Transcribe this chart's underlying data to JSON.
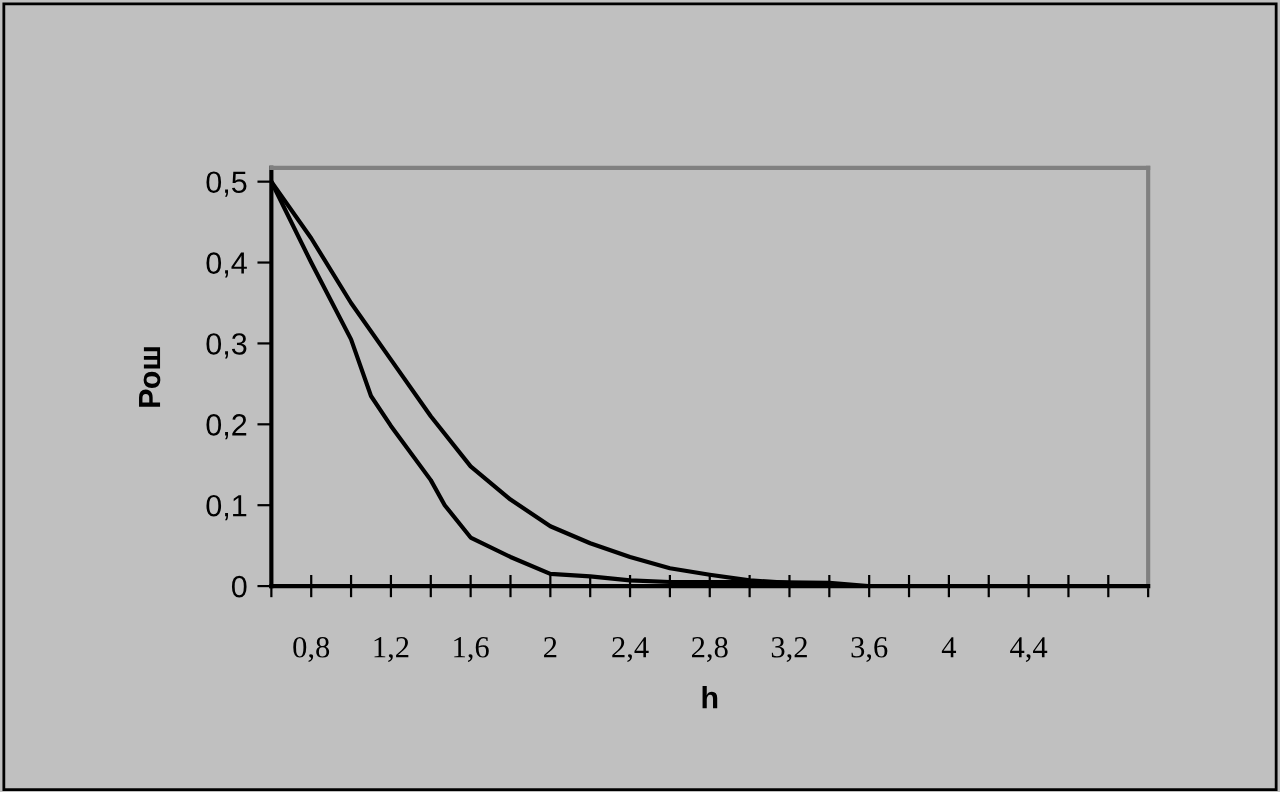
{
  "chart_data": {
    "type": "line",
    "xlabel": "h",
    "ylabel": "Рош",
    "series": [
      {
        "color": "#000000",
        "x": [
          0.6,
          0.8,
          1.0,
          1.2,
          1.4,
          1.6,
          1.8,
          2.0,
          2.2,
          2.4,
          2.6,
          2.8,
          3.0,
          3.2
        ],
        "values": [
          0.5,
          0.43,
          0.35,
          0.28,
          0.21,
          0.148,
          0.107,
          0.074,
          0.053,
          0.036,
          0.022,
          0.014,
          0.007,
          0.004
        ]
      },
      {
        "color": "#000000",
        "x": [
          0.6,
          0.8,
          1.0,
          1.1,
          1.2,
          1.4,
          1.47,
          1.6,
          1.8,
          2.0,
          2.2,
          2.4,
          2.6,
          3.0,
          3.4,
          3.6
        ],
        "values": [
          0.5,
          0.4,
          0.305,
          0.235,
          0.198,
          0.131,
          0.1,
          0.06,
          0.036,
          0.015,
          0.012,
          0.007,
          0.005,
          0.005,
          0.004,
          0
        ]
      }
    ],
    "xlim": [
      0.6,
      5.0
    ],
    "xticks": [
      {
        "value": 0.6,
        "label": null
      },
      {
        "value": 0.8,
        "label": "0,8"
      },
      {
        "value": 1.0,
        "label": null
      },
      {
        "value": 1.2,
        "label": "1,2"
      },
      {
        "value": 1.4,
        "label": null
      },
      {
        "value": 1.6,
        "label": "1,6"
      },
      {
        "value": 1.8,
        "label": null
      },
      {
        "value": 2.0,
        "label": "2"
      },
      {
        "value": 2.2,
        "label": null
      },
      {
        "value": 2.4,
        "label": "2,4"
      },
      {
        "value": 2.6,
        "label": null
      },
      {
        "value": 2.8,
        "label": "2,8"
      },
      {
        "value": 3.0,
        "label": null
      },
      {
        "value": 3.2,
        "label": "3,2"
      },
      {
        "value": 3.4,
        "label": null
      },
      {
        "value": 3.6,
        "label": "3,6"
      },
      {
        "value": 3.8,
        "label": null
      },
      {
        "value": 4.0,
        "label": "4"
      },
      {
        "value": 4.2,
        "label": null
      },
      {
        "value": 4.4,
        "label": "4,4"
      },
      {
        "value": 4.6,
        "label": null
      },
      {
        "value": 4.8,
        "label": null
      },
      {
        "value": 5.0,
        "label": null
      }
    ],
    "ylim": [
      0,
      0.517
    ],
    "yticks": [
      0,
      {
        "value": 0.1,
        "label": "0,1"
      },
      {
        "value": 0.2,
        "label": "0,2"
      },
      {
        "value": 0.3,
        "label": "0,3"
      },
      {
        "value": 0.4,
        "label": "0,4"
      },
      {
        "value": 0.5,
        "label": "0,5"
      }
    ],
    "grid": false,
    "marker": "none",
    "line_style": "solid"
  }
}
